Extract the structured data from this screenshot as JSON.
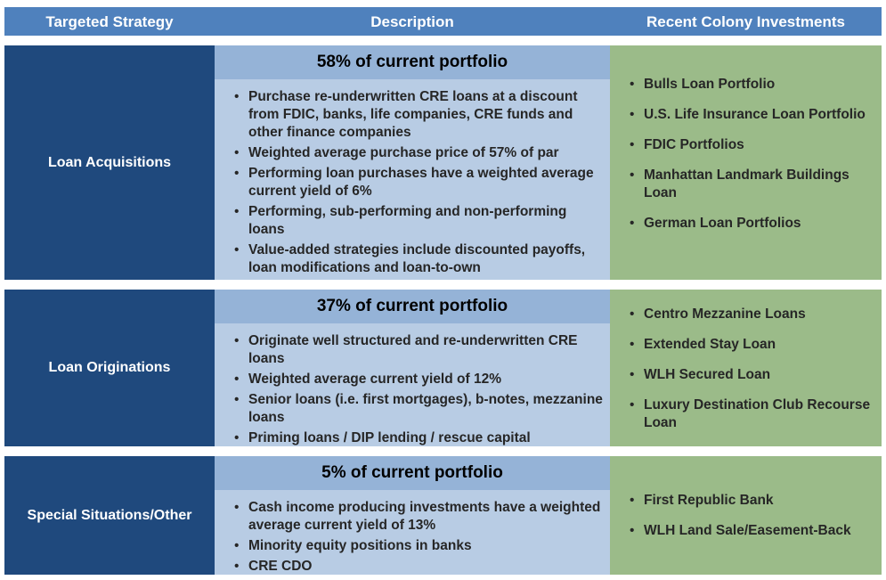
{
  "header": {
    "strategy": "Targeted Strategy",
    "description": "Description",
    "investments": "Recent Colony Investments"
  },
  "rows": [
    {
      "strategy": "Loan Acquisitions",
      "portfolio": "58% of current portfolio",
      "bullets": [
        "Purchase re-underwritten CRE loans at a discount from FDIC, banks, life companies, CRE funds and other finance companies",
        "Weighted average purchase price of 57% of par",
        "Performing loan purchases have a weighted average current yield of 6%",
        "Performing, sub-performing and non-performing loans",
        "Value-added strategies include discounted payoffs, loan modifications and loan-to-own"
      ],
      "investments": [
        "Bulls Loan Portfolio",
        "U.S. Life Insurance Loan Portfolio",
        "FDIC Portfolios",
        "Manhattan Landmark Buildings Loan",
        "German Loan Portfolios"
      ]
    },
    {
      "strategy": "Loan Originations",
      "portfolio": "37% of current portfolio",
      "bullets": [
        "Originate well structured and re-underwritten CRE loans",
        "Weighted average current yield of 12%",
        "Senior loans (i.e. first mortgages), b-notes, mezzanine loans",
        "Priming loans / DIP lending / rescue capital"
      ],
      "investments": [
        "Centro Mezzanine Loans",
        "Extended Stay Loan",
        "WLH Secured Loan",
        "Luxury Destination Club Recourse Loan"
      ]
    },
    {
      "strategy": "Special Situations/Other",
      "portfolio": "5% of current portfolio",
      "bullets": [
        "Cash income producing investments have a weighted average current yield of 13%",
        "Minority equity positions in banks",
        "CRE CDO"
      ],
      "investments": [
        "First Republic Bank",
        "WLH Land Sale/Easement-Back"
      ]
    }
  ],
  "colors": {
    "header": "#4f81bd",
    "strategy": "#1f497d",
    "description": "#b8cce4",
    "portfolio_band": "#95b3d7",
    "investments": "#9bbb89"
  }
}
